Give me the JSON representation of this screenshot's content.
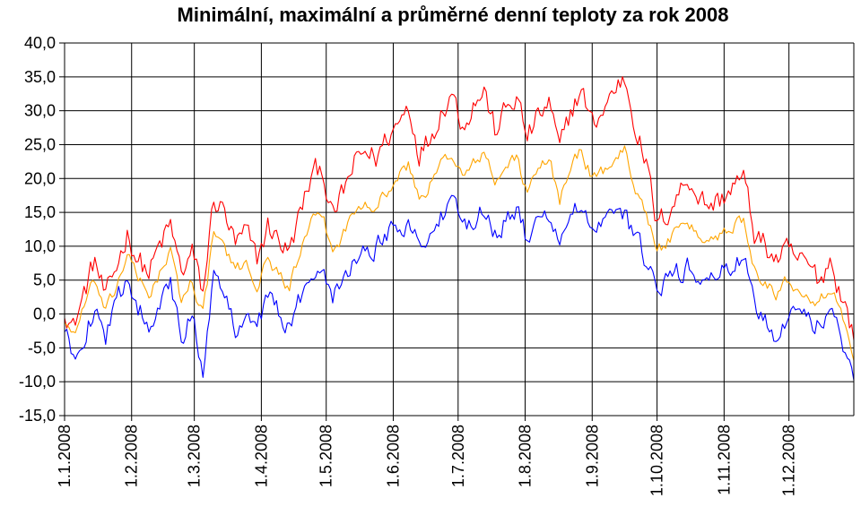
{
  "chart_data": {
    "type": "line",
    "title": "Minimální, maximální a průměrné denní teploty za rok 2008",
    "xlabel": "",
    "ylabel": "",
    "ylim": [
      -15,
      40
    ],
    "y_ticks": [
      "-15,0",
      "-10,0",
      "-5,0",
      "0,0",
      "5,0",
      "10,0",
      "15,0",
      "20,0",
      "25,0",
      "30,0",
      "35,0",
      "40,0"
    ],
    "x_ticks": [
      "1.1.2008",
      "1.2.2008",
      "1.3.2008",
      "1.4.2008",
      "1.5.2008",
      "1.6.2008",
      "1.7.2008",
      "1.8.2008",
      "1.9.2008",
      "1.10.2008",
      "1.11.2008",
      "1.12.2008"
    ],
    "grid": true,
    "legend": "none",
    "colors": {
      "max": "#ff0000",
      "avg": "#ffa500",
      "min": "#0000ff"
    },
    "series_keypoints_note_x_units": "day of year 2008",
    "series": [
      {
        "key": "max",
        "color": "#ff0000",
        "points": [
          [
            1,
            1
          ],
          [
            5,
            -2
          ],
          [
            10,
            3
          ],
          [
            15,
            8
          ],
          [
            20,
            2
          ],
          [
            25,
            7
          ],
          [
            30,
            12
          ],
          [
            35,
            8
          ],
          [
            40,
            6
          ],
          [
            45,
            10
          ],
          [
            50,
            13
          ],
          [
            55,
            6
          ],
          [
            60,
            9
          ],
          [
            65,
            3
          ],
          [
            70,
            17
          ],
          [
            75,
            15
          ],
          [
            80,
            10
          ],
          [
            85,
            12
          ],
          [
            90,
            8
          ],
          [
            95,
            13
          ],
          [
            100,
            11
          ],
          [
            105,
            9
          ],
          [
            110,
            15
          ],
          [
            115,
            20
          ],
          [
            120,
            22
          ],
          [
            125,
            14
          ],
          [
            130,
            18
          ],
          [
            135,
            22
          ],
          [
            140,
            24
          ],
          [
            145,
            23
          ],
          [
            150,
            26
          ],
          [
            155,
            28
          ],
          [
            160,
            31
          ],
          [
            165,
            24
          ],
          [
            170,
            26
          ],
          [
            175,
            30
          ],
          [
            180,
            33
          ],
          [
            185,
            28
          ],
          [
            190,
            31
          ],
          [
            195,
            33
          ],
          [
            200,
            27
          ],
          [
            205,
            30
          ],
          [
            210,
            32
          ],
          [
            215,
            26
          ],
          [
            220,
            29
          ],
          [
            225,
            31
          ],
          [
            230,
            24
          ],
          [
            235,
            30
          ],
          [
            240,
            33
          ],
          [
            245,
            28
          ],
          [
            250,
            30
          ],
          [
            255,
            33
          ],
          [
            260,
            35
          ],
          [
            265,
            28
          ],
          [
            270,
            22
          ],
          [
            275,
            13
          ],
          [
            280,
            15
          ],
          [
            285,
            18
          ],
          [
            290,
            20
          ],
          [
            295,
            17
          ],
          [
            300,
            16
          ],
          [
            305,
            17
          ],
          [
            310,
            19
          ],
          [
            315,
            20
          ],
          [
            320,
            12
          ],
          [
            325,
            10
          ],
          [
            330,
            8
          ],
          [
            335,
            9
          ],
          [
            340,
            8
          ],
          [
            345,
            7
          ],
          [
            350,
            5
          ],
          [
            355,
            8
          ],
          [
            360,
            3
          ],
          [
            366,
            -3
          ]
        ]
      },
      {
        "key": "avg",
        "color": "#ffa500",
        "points": [
          [
            1,
            -1
          ],
          [
            5,
            -3
          ],
          [
            10,
            1
          ],
          [
            15,
            5
          ],
          [
            20,
            0
          ],
          [
            25,
            4
          ],
          [
            30,
            9
          ],
          [
            35,
            5
          ],
          [
            40,
            3
          ],
          [
            45,
            6
          ],
          [
            50,
            9
          ],
          [
            55,
            2
          ],
          [
            60,
            5
          ],
          [
            65,
            0
          ],
          [
            70,
            12
          ],
          [
            75,
            10
          ],
          [
            80,
            6
          ],
          [
            85,
            8
          ],
          [
            90,
            4
          ],
          [
            95,
            8
          ],
          [
            100,
            6
          ],
          [
            105,
            4
          ],
          [
            110,
            9
          ],
          [
            115,
            13
          ],
          [
            120,
            15
          ],
          [
            125,
            9
          ],
          [
            130,
            12
          ],
          [
            135,
            15
          ],
          [
            140,
            17
          ],
          [
            145,
            16
          ],
          [
            150,
            18
          ],
          [
            155,
            20
          ],
          [
            160,
            22
          ],
          [
            165,
            17
          ],
          [
            170,
            19
          ],
          [
            175,
            22
          ],
          [
            180,
            24
          ],
          [
            185,
            20
          ],
          [
            190,
            22
          ],
          [
            195,
            24
          ],
          [
            200,
            19
          ],
          [
            205,
            22
          ],
          [
            210,
            23
          ],
          [
            215,
            18
          ],
          [
            220,
            21
          ],
          [
            225,
            23
          ],
          [
            230,
            17
          ],
          [
            235,
            22
          ],
          [
            240,
            24
          ],
          [
            245,
            20
          ],
          [
            250,
            21
          ],
          [
            255,
            23
          ],
          [
            260,
            24
          ],
          [
            265,
            19
          ],
          [
            270,
            15
          ],
          [
            275,
            9
          ],
          [
            280,
            11
          ],
          [
            285,
            12
          ],
          [
            290,
            13
          ],
          [
            295,
            11
          ],
          [
            300,
            11
          ],
          [
            305,
            12
          ],
          [
            310,
            13
          ],
          [
            315,
            14
          ],
          [
            320,
            7
          ],
          [
            325,
            5
          ],
          [
            330,
            3
          ],
          [
            335,
            5
          ],
          [
            340,
            4
          ],
          [
            345,
            3
          ],
          [
            350,
            2
          ],
          [
            355,
            4
          ],
          [
            360,
            0
          ],
          [
            366,
            -6
          ]
        ]
      },
      {
        "key": "min",
        "color": "#0000ff",
        "points": [
          [
            1,
            -3
          ],
          [
            5,
            -6
          ],
          [
            10,
            -3
          ],
          [
            15,
            1
          ],
          [
            20,
            -3
          ],
          [
            25,
            1
          ],
          [
            30,
            6
          ],
          [
            35,
            1
          ],
          [
            40,
            -1
          ],
          [
            45,
            2
          ],
          [
            50,
            4
          ],
          [
            55,
            -4
          ],
          [
            60,
            0
          ],
          [
            65,
            -8
          ],
          [
            70,
            6
          ],
          [
            75,
            2
          ],
          [
            80,
            -2
          ],
          [
            85,
            1
          ],
          [
            90,
            -2
          ],
          [
            95,
            3
          ],
          [
            100,
            0
          ],
          [
            105,
            -2
          ],
          [
            110,
            2
          ],
          [
            115,
            6
          ],
          [
            120,
            8
          ],
          [
            125,
            3
          ],
          [
            130,
            6
          ],
          [
            135,
            8
          ],
          [
            140,
            9
          ],
          [
            145,
            10
          ],
          [
            150,
            12
          ],
          [
            155,
            13
          ],
          [
            160,
            14
          ],
          [
            165,
            10
          ],
          [
            170,
            12
          ],
          [
            175,
            14
          ],
          [
            180,
            16
          ],
          [
            185,
            13
          ],
          [
            190,
            14
          ],
          [
            195,
            16
          ],
          [
            200,
            12
          ],
          [
            205,
            14
          ],
          [
            210,
            15
          ],
          [
            215,
            11
          ],
          [
            220,
            13
          ],
          [
            225,
            15
          ],
          [
            230,
            11
          ],
          [
            235,
            14
          ],
          [
            240,
            16
          ],
          [
            245,
            12
          ],
          [
            250,
            13
          ],
          [
            255,
            14
          ],
          [
            260,
            15
          ],
          [
            265,
            11
          ],
          [
            270,
            8
          ],
          [
            275,
            3
          ],
          [
            280,
            5
          ],
          [
            285,
            6
          ],
          [
            290,
            7
          ],
          [
            295,
            5
          ],
          [
            300,
            5
          ],
          [
            305,
            6
          ],
          [
            310,
            7
          ],
          [
            315,
            8
          ],
          [
            320,
            2
          ],
          [
            325,
            -1
          ],
          [
            330,
            -3
          ],
          [
            335,
            0
          ],
          [
            340,
            1
          ],
          [
            345,
            -1
          ],
          [
            350,
            -2
          ],
          [
            355,
            1
          ],
          [
            360,
            -4
          ],
          [
            366,
            -9
          ]
        ]
      }
    ]
  }
}
